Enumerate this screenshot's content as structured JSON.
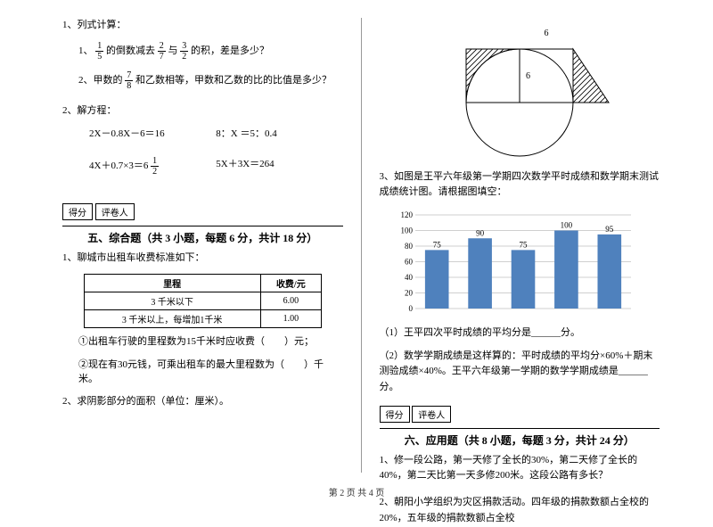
{
  "footer": "第 2 页 共 4 页",
  "left": {
    "q1_heading": "1、列式计算：",
    "q1_1": "的倒数减去",
    "q1_1_b": "与",
    "q1_1_c": "的积，差是多少？",
    "q1_1_prefix": "1、",
    "frac_1_5_n": "1",
    "frac_1_5_d": "5",
    "frac_2_7_n": "2",
    "frac_2_7_d": "7",
    "frac_3_2_n": "3",
    "frac_3_2_d": "2",
    "q1_2_prefix": "2、甲数的",
    "frac_7_8_n": "7",
    "frac_7_8_d": "8",
    "q1_2_suffix": "和乙数相等，甲数和乙数的比的比值是多少？",
    "q2_heading": "2、解方程：",
    "eq1": "2X－0.8X－6＝16",
    "eq2": "8：X ＝5：0.4",
    "eq3_a": "4X＋0.7×3＝6",
    "frac_1_2_n": "1",
    "frac_1_2_d": "2",
    "eq4": "5X＋3X＝264",
    "score_label_a": "得分",
    "score_label_b": "评卷人",
    "section5": "五、综合题（共 3 小题，每题 6 分，共计 18 分）",
    "s5_q1": "1、聊城市出租车收费标准如下：",
    "fare": {
      "h1": "里程",
      "h2": "收费/元",
      "r1c1": "3 千米以下",
      "r1c2": "6.00",
      "r2c1": "3 千米以上，每增加1千米",
      "r2c2": "1.00"
    },
    "s5_q1_a": "①出租车行驶的里程数为15千米时应收费（　　）元；",
    "s5_q1_b": "②现在有30元钱，可乘出租车的最大里程数为（　　）千米。",
    "s5_q2": "2、求阴影部分的面积（单位：厘米）。"
  },
  "geom": {
    "top_label": "6",
    "radius_label": "6",
    "stroke": "#000000",
    "hatch": "#000000"
  },
  "chart": {
    "q3_text": "3、如图是王平六年级第一学期四次数学平时成绩和数学期末测试成绩统计图。请根据图填空：",
    "values": [
      75,
      90,
      75,
      100,
      95
    ],
    "y_ticks": [
      0,
      20,
      40,
      60,
      80,
      100,
      120
    ],
    "bar_color": "#4f81bd",
    "grid_color": "#bfbfbf",
    "label_fontsize": 9,
    "value_fontsize": 9,
    "q3_a": "（1）王平四次平时成绩的平均分是______分。",
    "q3_b": "（2）数学学期成绩是这样算的：平时成绩的平均分×60%＋期末测验成绩×40%。王平六年级第一学期的数学学期成绩是______分。"
  },
  "right": {
    "score_label_a": "得分",
    "score_label_b": "评卷人",
    "section6": "六、应用题（共 8 小题，每题 3 分，共计 24 分）",
    "s6_q1": "1、修一段公路，第一天修了全长的30%，第二天修了全长的40%，第二天比第一天多修200米。这段公路有多长？",
    "s6_q2": "2、朝阳小学组织为灾区捐款活动。四年级的捐款数额占全校的20%，五年级的捐款数额占全校"
  }
}
